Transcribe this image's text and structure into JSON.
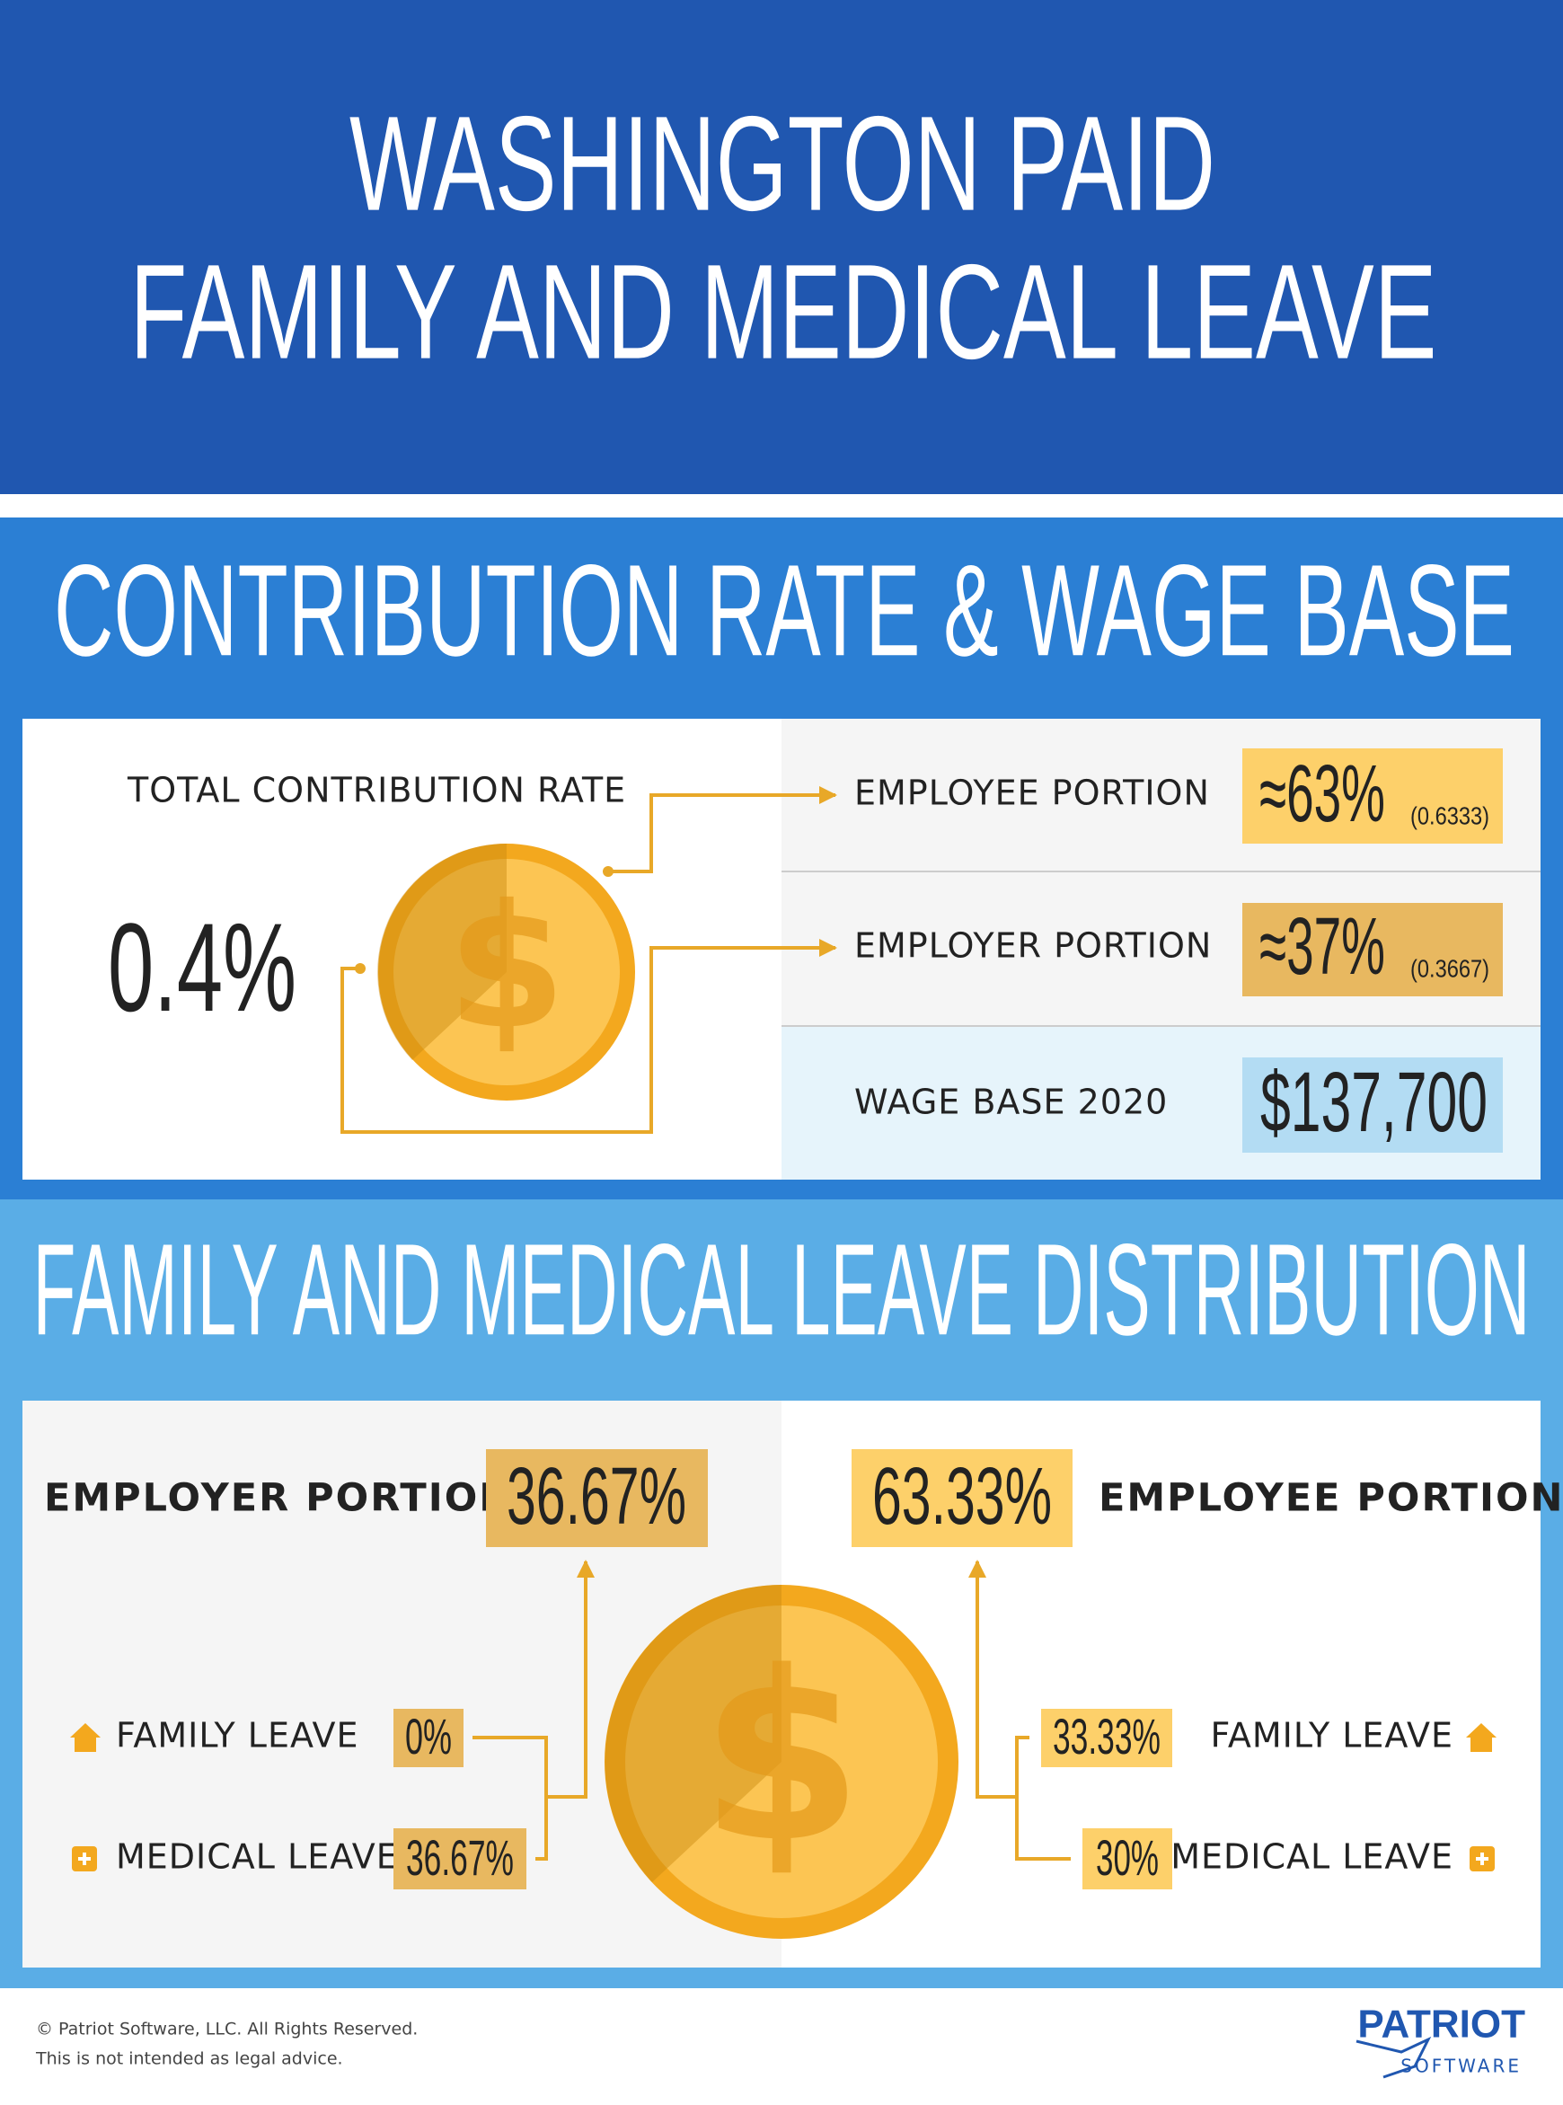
{
  "header": {
    "title_line1": "WASHINGTON PAID",
    "title_line2": "FAMILY AND MEDICAL LEAVE"
  },
  "contribution": {
    "title": "CONTRIBUTION RATE & WAGE BASE",
    "total_label": "TOTAL CONTRIBUTION RATE",
    "total_value": "0.4%",
    "employee": {
      "label": "EMPLOYEE PORTION",
      "value": "≈63%",
      "detail": "(0.6333)"
    },
    "employer": {
      "label": "EMPLOYER PORTION",
      "value": "≈37%",
      "detail": "(0.3667)"
    },
    "wage_label": "WAGE BASE 2020",
    "wage_value": "$137,700"
  },
  "distribution": {
    "title": "FAMILY AND MEDICAL LEAVE DISTRIBUTION",
    "employer": {
      "label": "EMPLOYER PORTION",
      "value": "36.67%",
      "family_label": "FAMILY LEAVE",
      "family_value": "0%",
      "medical_label": "MEDICAL LEAVE",
      "medical_value": "36.67%"
    },
    "employee": {
      "label": "EMPLOYEE PORTION",
      "value": "63.33%",
      "family_label": "FAMILY LEAVE",
      "family_value": "33.33%",
      "medical_label": "MEDICAL LEAVE",
      "medical_value": "30%"
    }
  },
  "footer": {
    "copyright": "© Patriot Software, LLC. All Rights Reserved.",
    "disclaimer": "This is not intended as legal advice.",
    "logo": "PATRIOT",
    "logo_sub": "SOFTWARE"
  }
}
